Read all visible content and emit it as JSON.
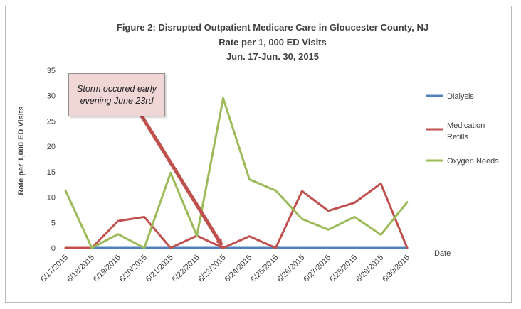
{
  "chart_data": {
    "type": "line",
    "title": "Figure 2:  Disrupted Outpatient Medicare Care in Gloucester County, NJ",
    "subtitle_lines": [
      "Rate per 1, 000 ED Visits",
      "Jun. 17-Jun. 30, 2015"
    ],
    "xlabel": "Date",
    "ylabel": "Rate per 1,000 ED Visits",
    "ylim": [
      0,
      35
    ],
    "yticks": [
      0,
      5,
      10,
      15,
      20,
      25,
      30,
      35
    ],
    "categories": [
      "6/17/2015",
      "6/18/2015",
      "6/19/2015",
      "6/20/2015",
      "6/21/2015",
      "6/22/2015",
      "6/23/2015",
      "6/24/2015",
      "6/25/2015",
      "6/26/2015",
      "6/27/2015",
      "6/28/2015",
      "6/29/2015",
      "6/30/2015"
    ],
    "series": [
      {
        "name": "Dialysis",
        "color": "#4f81bd",
        "values": [
          0,
          0,
          0,
          0,
          0,
          0,
          0,
          0,
          0,
          0,
          0,
          0,
          0,
          0
        ]
      },
      {
        "name": "Medication Refills",
        "color": "#c0504d",
        "values": [
          0,
          0,
          5.3,
          6.1,
          0,
          2.4,
          0,
          2.3,
          0,
          11.2,
          7.3,
          8.9,
          12.7,
          0
        ]
      },
      {
        "name": "Oxygen Needs",
        "color": "#9bbb59",
        "values": [
          11.3,
          0,
          2.7,
          0,
          14.8,
          2.4,
          29.5,
          13.5,
          11.3,
          5.7,
          3.6,
          6.1,
          2.6,
          9
        ]
      }
    ],
    "grid": false,
    "legend_position": "right",
    "annotation": {
      "text": "Storm occured early evening June 23rd",
      "target_category": "6/23/2015",
      "color": "#c0504d"
    }
  }
}
